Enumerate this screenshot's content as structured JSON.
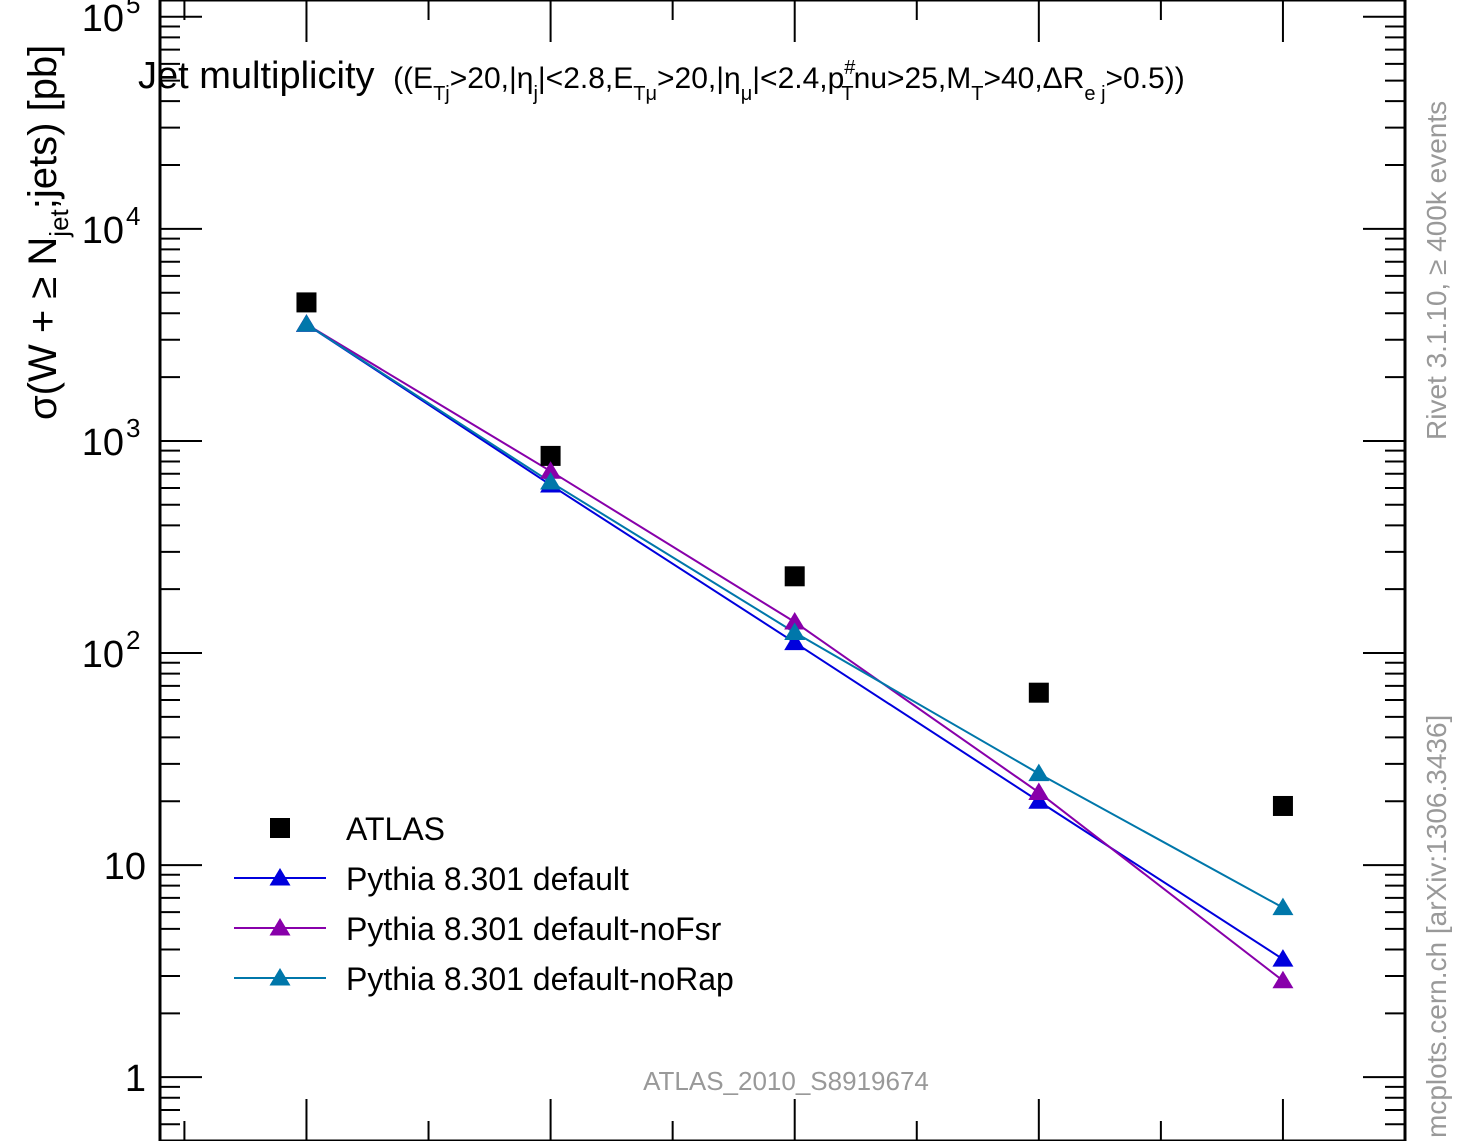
{
  "chart_data": {
    "type": "line",
    "title": "Jet multiplicity",
    "title_cuts": {
      "open": "((E",
      "sub1": "Tj",
      "p1": ">20,|η",
      "sub2": "j",
      "p2": "|<2.8,E",
      "sub3": "Tμ",
      "p3": ">20,|η",
      "sub4": "μ",
      "p4": "|<2.4,p",
      "sup5": "#",
      "sub5": "T",
      "p5": "nu>25,M",
      "sub6": "T",
      "p6": ">40,ΔR",
      "sub7": "e j",
      "p7": ">0.5))"
    },
    "ylabel": {
      "pre": "σ(W + ≥ N",
      "sub": "jet",
      "post": ";jets) [pb]"
    },
    "yscale": "log",
    "ylim": [
      0.5,
      120000
    ],
    "xlim": [
      -0.6,
      4.5
    ],
    "x": [
      0,
      1,
      2,
      3,
      4
    ],
    "y_tick_labels": [
      {
        "base": "1",
        "exp": ""
      },
      {
        "base": "10",
        "exp": ""
      },
      {
        "base": "10",
        "exp": "2"
      },
      {
        "base": "10",
        "exp": "3"
      },
      {
        "base": "10",
        "exp": "4"
      },
      {
        "base": "10",
        "exp": "5"
      }
    ],
    "y_tick_values": [
      1,
      10,
      100,
      1000,
      10000,
      100000
    ],
    "series": [
      {
        "name": "ATLAS",
        "marker": "square",
        "color": "#000000",
        "line": false,
        "values": [
          4500,
          850,
          230,
          65,
          19
        ]
      },
      {
        "name": "Pythia 8.301 default",
        "marker": "triangle",
        "color": "#0000dd",
        "line": true,
        "values": [
          3550,
          620,
          112,
          20,
          3.6
        ]
      },
      {
        "name": "Pythia 8.301 default-noFsr",
        "marker": "triangle",
        "color": "#8800aa",
        "line": true,
        "values": [
          3550,
          720,
          140,
          22,
          2.85
        ]
      },
      {
        "name": "Pythia 8.301 default-noRap",
        "marker": "triangle",
        "color": "#0077aa",
        "line": true,
        "values": [
          3550,
          640,
          125,
          27,
          6.3
        ]
      }
    ],
    "legend_position": "bottom-left",
    "analysis_label": "ATLAS_2010_S8919674",
    "side_label_top": "Rivet 3.1.10, ≥ 400k events",
    "side_label_bottom": "mcplots.cern.ch [arXiv:1306.3436]"
  }
}
